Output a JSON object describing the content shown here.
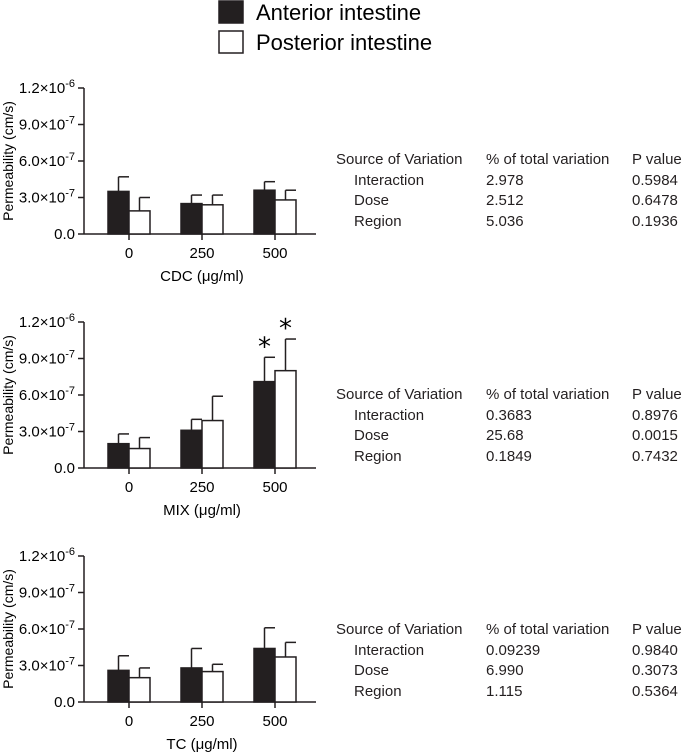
{
  "legend": [
    {
      "label": "Anterior intestine",
      "fill": "#231f20"
    },
    {
      "label": "Posterior intestine",
      "fill": "#ffffff"
    }
  ],
  "colors": {
    "axis": "#231f20",
    "anterior": "#231f20",
    "posterior": "#ffffff"
  },
  "chart_data": [
    {
      "type": "bar",
      "ylabel": "Permeability (cm/s)",
      "xlabel": "CDC (μg/ml)",
      "categories": [
        "0",
        "250",
        "500"
      ],
      "ylim": [
        0,
        1.2e-06
      ],
      "yticks": [
        0,
        3e-07,
        6e-07,
        9e-07,
        1.2e-06
      ],
      "ytick_labels": [
        {
          "mant": "0.0",
          "exp": ""
        },
        {
          "mant": "3.0×10",
          "exp": "-7"
        },
        {
          "mant": "6.0×10",
          "exp": "-7"
        },
        {
          "mant": "9.0×10",
          "exp": "-7"
        },
        {
          "mant": "1.2×10",
          "exp": "-6"
        }
      ],
      "series": [
        {
          "name": "Anterior intestine",
          "values": [
            3.5e-07,
            2.5e-07,
            3.6e-07
          ],
          "errors": [
            1.2e-07,
            7e-08,
            7e-08
          ],
          "significant": [
            false,
            false,
            false
          ]
        },
        {
          "name": "Posterior intestine",
          "values": [
            1.9e-07,
            2.4e-07,
            2.8e-07
          ],
          "errors": [
            1.1e-07,
            8e-08,
            8e-08
          ],
          "significant": [
            false,
            false,
            false
          ]
        }
      ],
      "stats": {
        "headers": [
          "Source of Variation",
          "% of total variation",
          "P value"
        ],
        "rows": [
          [
            "Interaction",
            "2.978",
            "0.5984"
          ],
          [
            "Dose",
            "2.512",
            "0.6478"
          ],
          [
            "Region",
            "5.036",
            "0.1936"
          ]
        ]
      }
    },
    {
      "type": "bar",
      "ylabel": "Permeability (cm/s)",
      "xlabel": "MIX (μg/ml)",
      "categories": [
        "0",
        "250",
        "500"
      ],
      "ylim": [
        0,
        1.2e-06
      ],
      "yticks": [
        0,
        3e-07,
        6e-07,
        9e-07,
        1.2e-06
      ],
      "ytick_labels": [
        {
          "mant": "0.0",
          "exp": ""
        },
        {
          "mant": "3.0×10",
          "exp": "-7"
        },
        {
          "mant": "6.0×10",
          "exp": "-7"
        },
        {
          "mant": "9.0×10",
          "exp": "-7"
        },
        {
          "mant": "1.2×10",
          "exp": "-6"
        }
      ],
      "series": [
        {
          "name": "Anterior intestine",
          "values": [
            2e-07,
            3.1e-07,
            7.1e-07
          ],
          "errors": [
            8e-08,
            9e-08,
            2e-07
          ],
          "significant": [
            false,
            false,
            true
          ]
        },
        {
          "name": "Posterior intestine",
          "values": [
            1.6e-07,
            3.9e-07,
            8e-07
          ],
          "errors": [
            9e-08,
            2e-07,
            2.6e-07
          ],
          "significant": [
            false,
            false,
            true
          ]
        }
      ],
      "significance_marker": "*",
      "stats": {
        "headers": [
          "Source of Variation",
          "% of total variation",
          "P value"
        ],
        "rows": [
          [
            "Interaction",
            "0.3683",
            "0.8976"
          ],
          [
            "Dose",
            "25.68",
            "0.0015"
          ],
          [
            "Region",
            "0.1849",
            "0.7432"
          ]
        ]
      }
    },
    {
      "type": "bar",
      "ylabel": "Permeability (cm/s)",
      "xlabel": "TC (μg/ml)",
      "categories": [
        "0",
        "250",
        "500"
      ],
      "ylim": [
        0,
        1.2e-06
      ],
      "yticks": [
        0,
        3e-07,
        6e-07,
        9e-07,
        1.2e-06
      ],
      "ytick_labels": [
        {
          "mant": "0.0",
          "exp": ""
        },
        {
          "mant": "3.0×10",
          "exp": "-7"
        },
        {
          "mant": "6.0×10",
          "exp": "-7"
        },
        {
          "mant": "9.0×10",
          "exp": "-7"
        },
        {
          "mant": "1.2×10",
          "exp": "-6"
        }
      ],
      "series": [
        {
          "name": "Anterior intestine",
          "values": [
            2.6e-07,
            2.8e-07,
            4.4e-07
          ],
          "errors": [
            1.2e-07,
            1.6e-07,
            1.7e-07
          ],
          "significant": [
            false,
            false,
            false
          ]
        },
        {
          "name": "Posterior intestine",
          "values": [
            2e-07,
            2.5e-07,
            3.7e-07
          ],
          "errors": [
            8e-08,
            6e-08,
            1.2e-07
          ],
          "significant": [
            false,
            false,
            false
          ]
        }
      ],
      "stats": {
        "headers": [
          "Source of Variation",
          "% of total variation",
          "P value"
        ],
        "rows": [
          [
            "Interaction",
            "0.09239",
            "0.9840"
          ],
          [
            "Dose",
            "6.990",
            "0.3073"
          ],
          [
            "Region",
            "1.115",
            "0.5364"
          ]
        ]
      }
    }
  ]
}
